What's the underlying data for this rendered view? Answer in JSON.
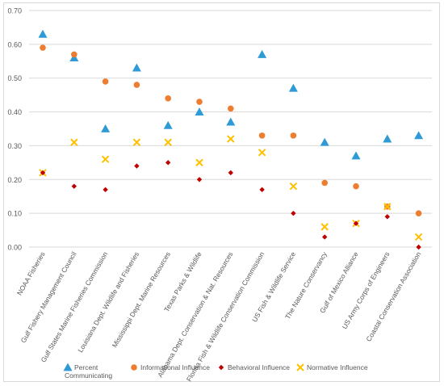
{
  "chart_data": {
    "type": "scatter",
    "title": "",
    "xlabel": "",
    "ylabel": "",
    "ylim": [
      0,
      0.7
    ],
    "yticks": [
      "0.00",
      "0.10",
      "0.20",
      "0.30",
      "0.40",
      "0.50",
      "0.60",
      "0.70"
    ],
    "grid": "horizontal",
    "legend": "bottom",
    "categories": [
      "NOAA Fisheries",
      "Gulf Fishery Management Council",
      "Gulf States Marine Fisheries Commission",
      "Louisiana Dept. Wildlife and Fisheries",
      "Mississippi Dept. Marine Resources",
      "Texas Parks & Wildlife",
      "Alabama Dept. Conservation & Nat. Resources",
      "Florida Fish & Wildlife Conservation Commission",
      "US Fish & Wildlife Service",
      "The Nature Conservancy",
      "Gulf of Mexico Alliance",
      "US Army Corps of Engineers",
      "Coastal Conservation Association"
    ],
    "series": [
      {
        "name": "Percent Communicating",
        "marker": "triangle",
        "color": "#2e9bd6",
        "values": [
          0.63,
          0.56,
          0.35,
          0.53,
          0.36,
          0.4,
          0.37,
          0.57,
          0.47,
          0.31,
          0.27,
          0.32,
          0.33
        ]
      },
      {
        "name": "Informational Influence",
        "marker": "circle",
        "color": "#ed7d31",
        "values": [
          0.59,
          0.57,
          0.49,
          0.48,
          0.44,
          0.43,
          0.41,
          0.33,
          0.33,
          0.19,
          0.18,
          0.12,
          0.1
        ]
      },
      {
        "name": "Behavioral Influence",
        "marker": "diamond",
        "color": "#c00000",
        "values": [
          0.22,
          0.18,
          0.17,
          0.24,
          0.25,
          0.2,
          0.22,
          0.17,
          0.1,
          0.03,
          0.07,
          0.09,
          0.0
        ]
      },
      {
        "name": "Normative Influence",
        "marker": "x",
        "color": "#ffc000",
        "values": [
          0.22,
          0.31,
          0.26,
          0.31,
          0.31,
          0.25,
          0.32,
          0.28,
          0.18,
          0.06,
          0.07,
          0.12,
          0.03
        ]
      }
    ]
  },
  "legend": {
    "items": [
      {
        "line1": "Percent",
        "line2": "Communicating"
      },
      {
        "line1": "Informational Influence",
        "line2": ""
      },
      {
        "line1": "Behavioral Influence",
        "line2": ""
      },
      {
        "line1": "Normative Influence",
        "line2": ""
      }
    ]
  }
}
